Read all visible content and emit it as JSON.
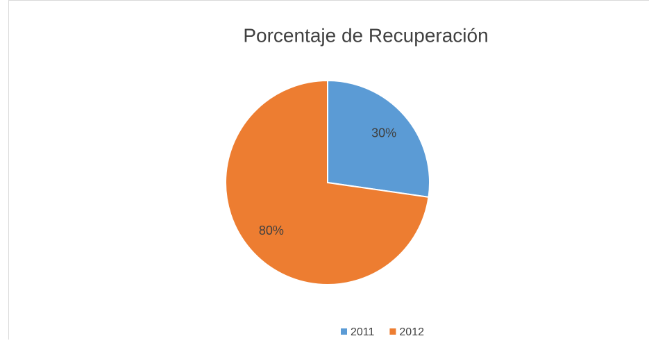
{
  "chart_data": {
    "type": "pie",
    "title": "Porcentaje de Recuperación",
    "categories": [
      "2011",
      "2012"
    ],
    "values": [
      30,
      80
    ],
    "value_labels": [
      "30%",
      "80%"
    ],
    "colors": [
      "#5b9bd5",
      "#ed7d31"
    ],
    "legend": "bottom"
  }
}
